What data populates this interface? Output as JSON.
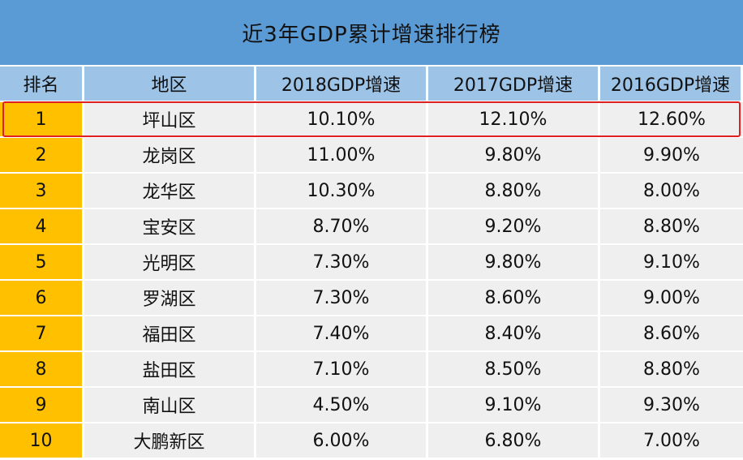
{
  "title": "近3年GDP累计增速排行榜",
  "chart_data": {
    "type": "table",
    "title": "近3年GDP累计增速排行榜",
    "columns": [
      "排名",
      "地区",
      "2018GDP增速",
      "2017GDP增速",
      "2016GDP增速"
    ],
    "rows": [
      [
        "1",
        "坪山区",
        "10.10%",
        "12.10%",
        "12.60%"
      ],
      [
        "2",
        "龙岗区",
        "11.00%",
        "9.80%",
        "9.90%"
      ],
      [
        "3",
        "龙华区",
        "10.30%",
        "8.80%",
        "8.00%"
      ],
      [
        "4",
        "宝安区",
        "8.70%",
        "9.20%",
        "8.80%"
      ],
      [
        "5",
        "光明区",
        "7.30%",
        "9.80%",
        "9.10%"
      ],
      [
        "6",
        "罗湖区",
        "7.30%",
        "8.60%",
        "9.00%"
      ],
      [
        "7",
        "福田区",
        "7.40%",
        "8.40%",
        "8.60%"
      ],
      [
        "8",
        "盐田区",
        "7.10%",
        "8.50%",
        "8.80%"
      ],
      [
        "9",
        "南山区",
        "4.50%",
        "9.10%",
        "9.30%"
      ],
      [
        "10",
        "大鹏新区",
        "6.00%",
        "6.80%",
        "7.00%"
      ]
    ],
    "highlighted_row": 0
  },
  "colors": {
    "title_bg": "#5b9bd5",
    "header_bg": "#9dc3e6",
    "rank_bg": "#ffc000",
    "cell_bg": "#efefef",
    "highlight_border": "#e02020"
  }
}
